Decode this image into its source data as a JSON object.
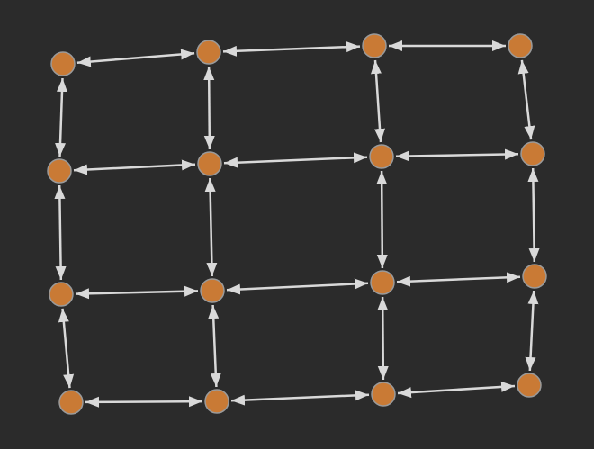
{
  "colors": {
    "background": "#2b2b2b",
    "node_fill": "#c97a35",
    "node_stroke": "#9a9a9a",
    "edge": "#d9d9d9"
  },
  "graph": {
    "directed": true,
    "bidirectional_edges": true,
    "node_labels_shown": false,
    "grid": {
      "rows": 4,
      "cols": 4
    },
    "nodes": [
      {
        "id": "n0"
      },
      {
        "id": "n1"
      },
      {
        "id": "n2"
      },
      {
        "id": "n3"
      },
      {
        "id": "n4"
      },
      {
        "id": "n5"
      },
      {
        "id": "n6"
      },
      {
        "id": "n7"
      },
      {
        "id": "n8"
      },
      {
        "id": "n9"
      },
      {
        "id": "n10"
      },
      {
        "id": "n11"
      },
      {
        "id": "n12"
      },
      {
        "id": "n13"
      },
      {
        "id": "n14"
      },
      {
        "id": "n15"
      }
    ],
    "edges": [
      {
        "source": "n0",
        "target": "n1"
      },
      {
        "source": "n1",
        "target": "n2"
      },
      {
        "source": "n2",
        "target": "n3"
      },
      {
        "source": "n4",
        "target": "n5"
      },
      {
        "source": "n5",
        "target": "n6"
      },
      {
        "source": "n6",
        "target": "n7"
      },
      {
        "source": "n8",
        "target": "n9"
      },
      {
        "source": "n9",
        "target": "n10"
      },
      {
        "source": "n10",
        "target": "n11"
      },
      {
        "source": "n12",
        "target": "n13"
      },
      {
        "source": "n13",
        "target": "n14"
      },
      {
        "source": "n14",
        "target": "n15"
      },
      {
        "source": "n0",
        "target": "n4"
      },
      {
        "source": "n4",
        "target": "n8"
      },
      {
        "source": "n8",
        "target": "n12"
      },
      {
        "source": "n1",
        "target": "n5"
      },
      {
        "source": "n5",
        "target": "n9"
      },
      {
        "source": "n9",
        "target": "n13"
      },
      {
        "source": "n2",
        "target": "n6"
      },
      {
        "source": "n6",
        "target": "n10"
      },
      {
        "source": "n10",
        "target": "n14"
      },
      {
        "source": "n3",
        "target": "n7"
      },
      {
        "source": "n7",
        "target": "n11"
      },
      {
        "source": "n11",
        "target": "n15"
      }
    ]
  }
}
